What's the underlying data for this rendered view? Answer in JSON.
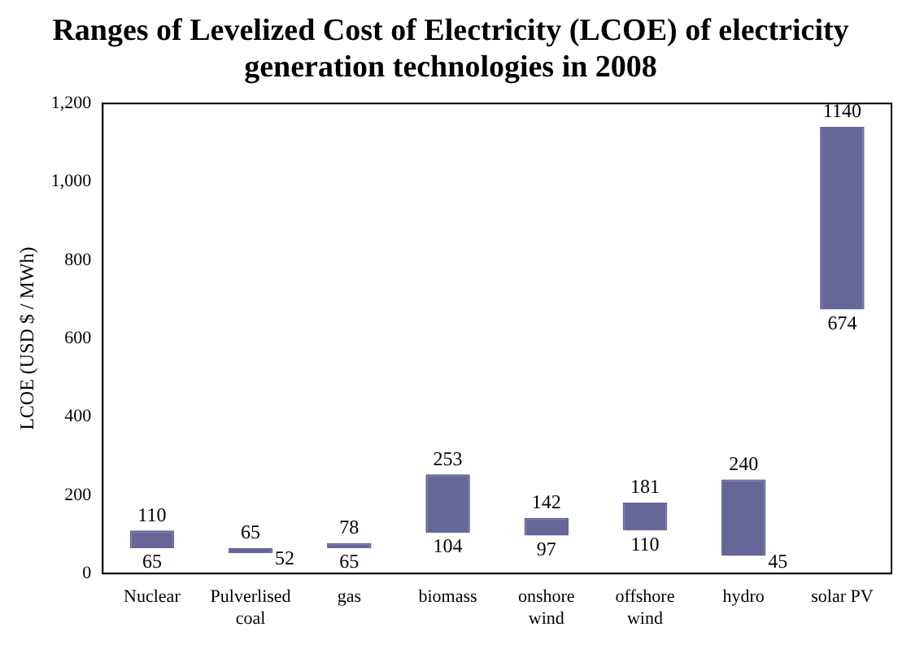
{
  "chart_data": {
    "type": "bar",
    "title": "Ranges of Levelized Cost of Electricity (LCOE) of electricity generation technologies in 2008",
    "ylabel": "LCOE (USD $ / MWh)",
    "categories": [
      "Nuclear",
      "Pulverlised coal",
      "gas",
      "biomass",
      "onshore wind",
      "offshore wind",
      "hydro",
      "solar PV"
    ],
    "base": [
      65,
      52,
      65,
      104,
      97,
      110,
      45,
      674
    ],
    "values": [
      45,
      13,
      13,
      149,
      45,
      71,
      195,
      466
    ],
    "color": "#666699",
    "ylim": [
      0,
      1200
    ],
    "yticks": [
      0,
      200,
      400,
      600,
      800,
      {
        "value": 1000,
        "label": "1,000"
      },
      {
        "value": 1200,
        "label": "1,200"
      }
    ],
    "grid": false,
    "legend": false,
    "annotations": [
      {
        "text": "110",
        "x": "Nuclear",
        "y": 110
      },
      {
        "text": "65",
        "x": "Nuclear",
        "y": 65
      },
      {
        "text": "65",
        "x": "Pulverlised coal",
        "y": 65
      },
      {
        "text": "52",
        "x": "Pulverlised coal",
        "y": 52
      },
      {
        "text": "78",
        "x": "gas",
        "y": 78
      },
      {
        "text": "65",
        "x": "gas",
        "y": 65
      },
      {
        "text": "253",
        "x": "biomass",
        "y": 253
      },
      {
        "text": "104",
        "x": "biomass",
        "y": 104
      },
      {
        "text": "142",
        "x": "onshore wind",
        "y": 142
      },
      {
        "text": "97",
        "x": "onshore wind",
        "y": 97
      },
      {
        "text": "181",
        "x": "offshore wind",
        "y": 181
      },
      {
        "text": "110",
        "x": "offshore wind",
        "y": 110
      },
      {
        "text": "240",
        "x": "hydro",
        "y": 240
      },
      {
        "text": "45",
        "x": "hydro",
        "y": 45
      },
      {
        "text": "1140",
        "x": "solar PV",
        "y": 1140
      },
      {
        "text": "674",
        "x": "solar PV",
        "y": 674
      }
    ]
  }
}
